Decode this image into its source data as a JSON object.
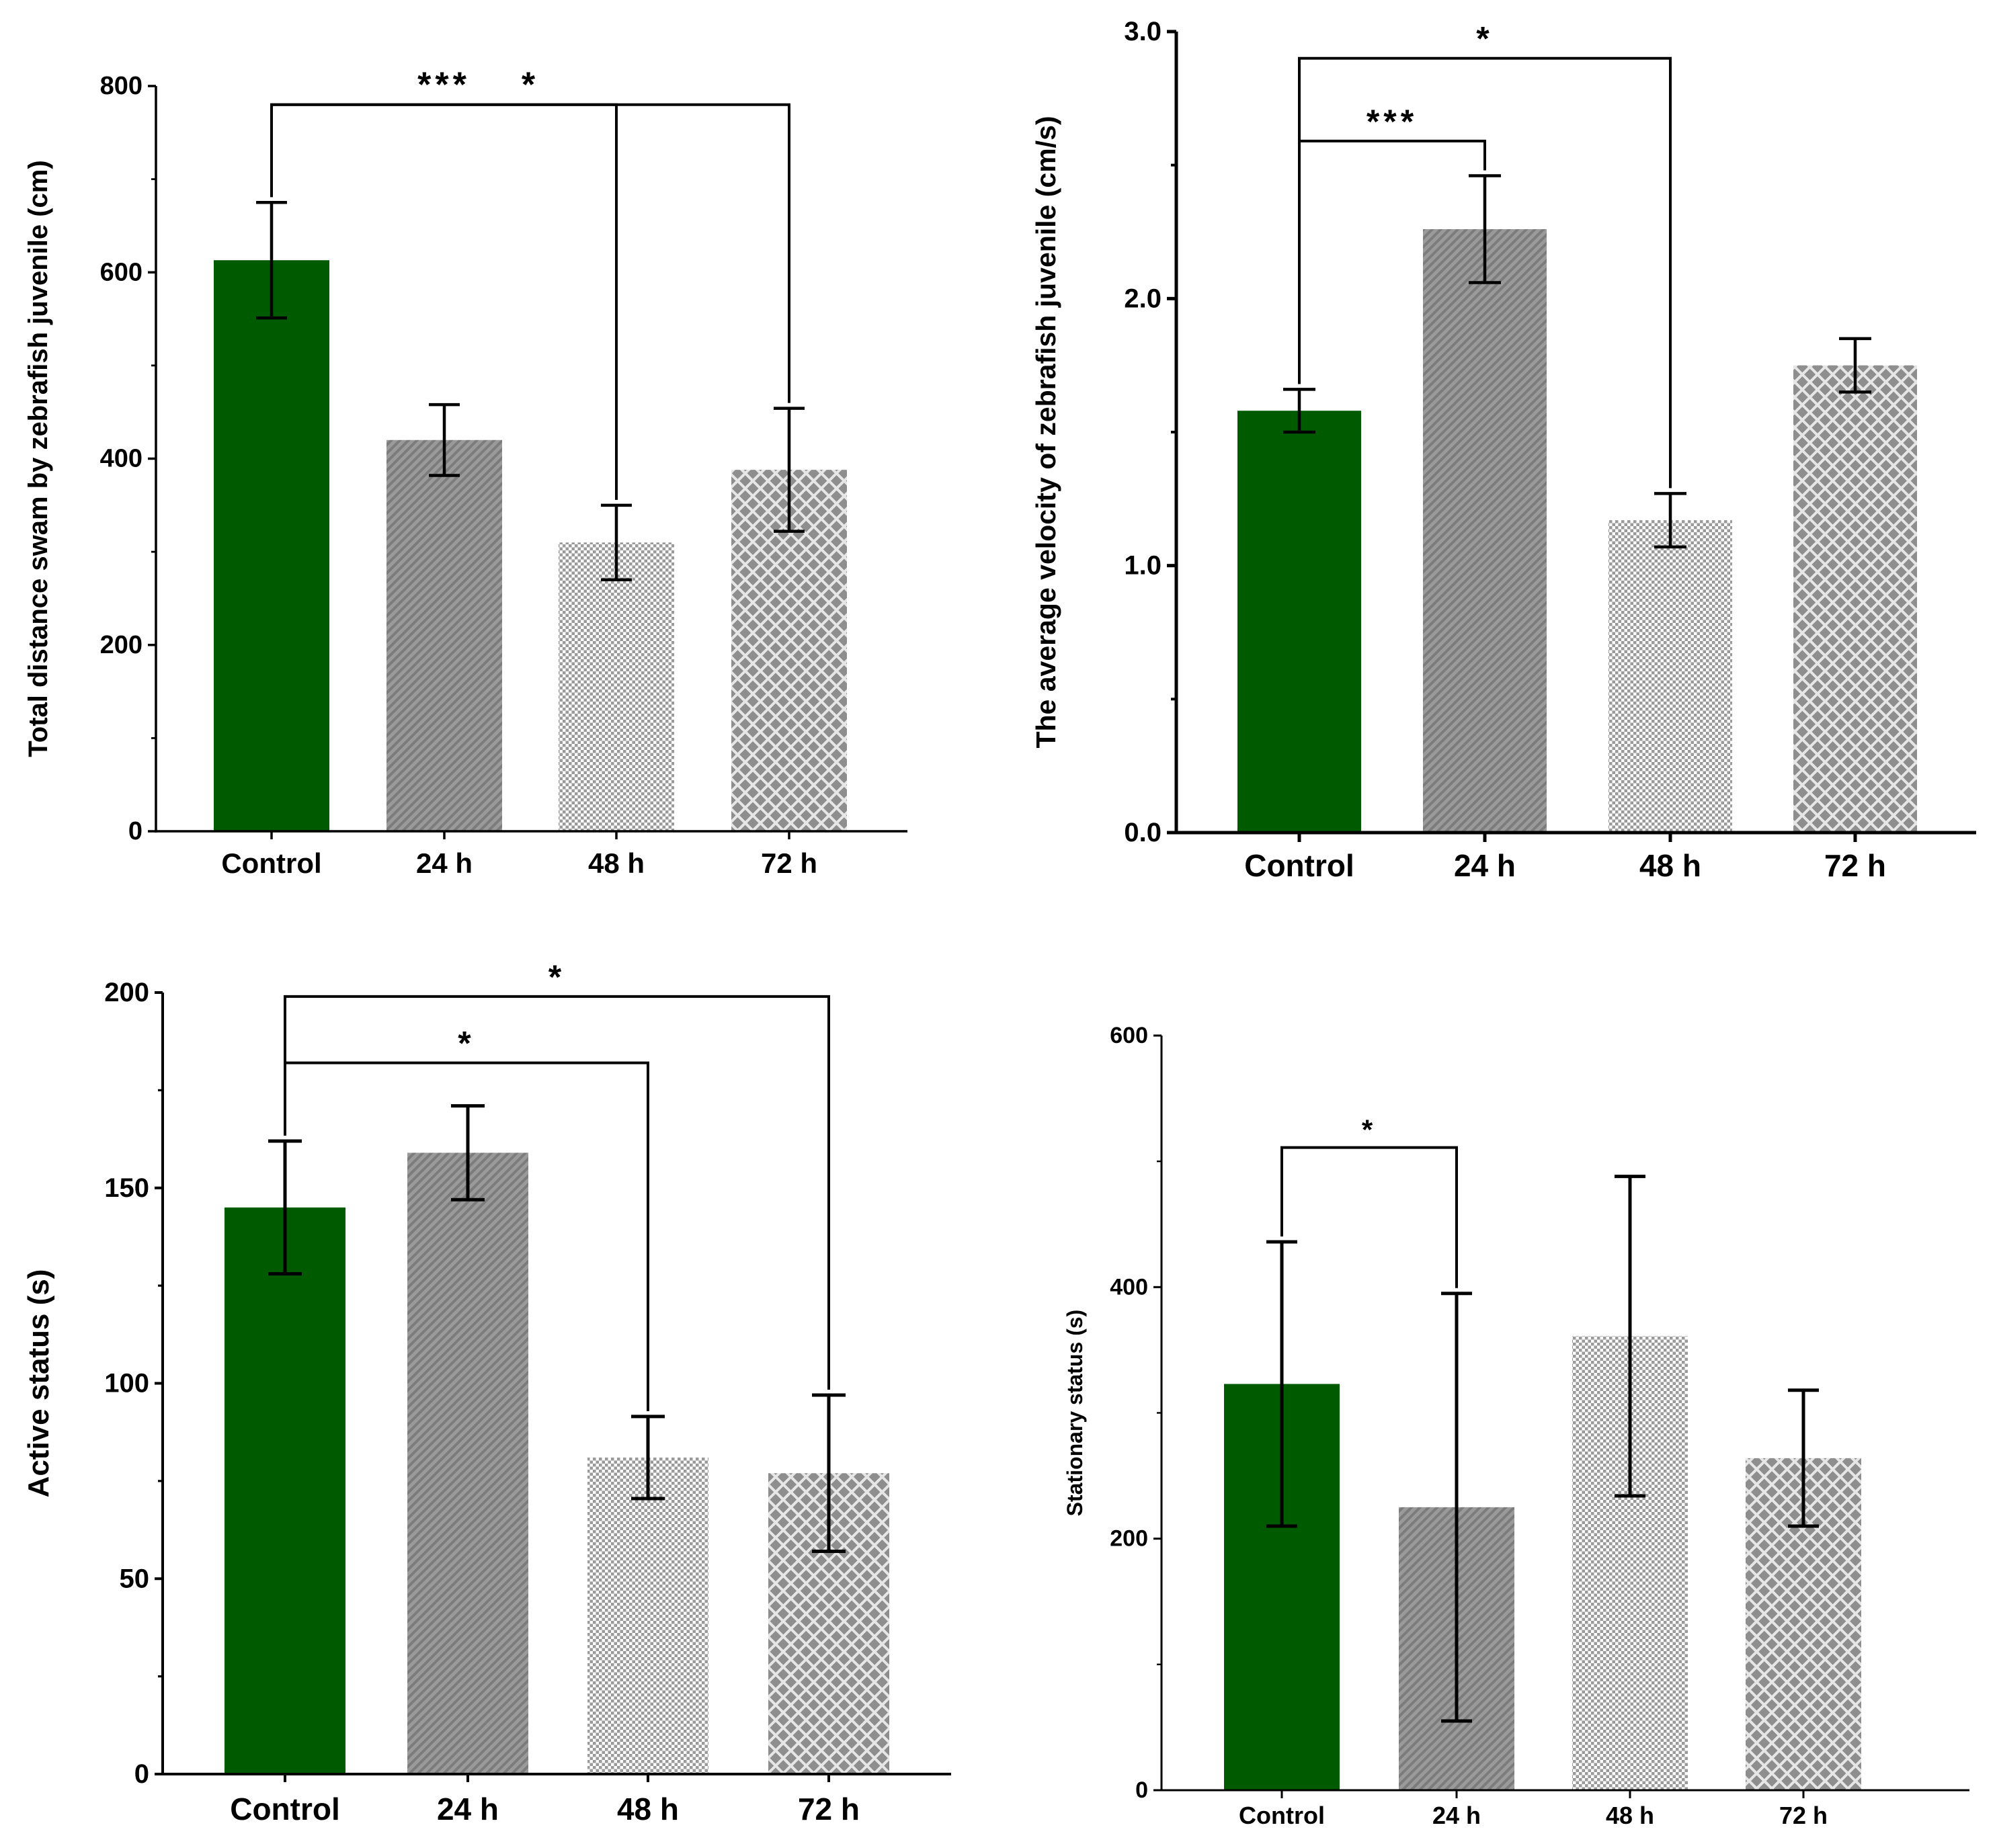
{
  "chart_data": [
    {
      "type": "bar",
      "categories": [
        "Control",
        "24 h",
        "48 h",
        "72 h"
      ],
      "values": [
        613,
        420,
        310,
        388
      ],
      "errors": [
        62,
        38,
        40,
        66
      ],
      "ylabel": "Total distance swam by zebrafish juvenile (cm)",
      "ylim": [
        0,
        800
      ],
      "yticks": [
        {
          "value": 0,
          "label": "0"
        },
        {
          "value": 200,
          "label": "200"
        },
        {
          "value": 400,
          "label": "400"
        },
        {
          "value": 600,
          "label": "600"
        },
        {
          "value": 800,
          "label": "800"
        }
      ],
      "minor_ticks": [
        100,
        300,
        500,
        700
      ],
      "bar_fills": [
        "solid",
        "diagonal",
        "dots",
        "crosshatch"
      ],
      "significance": [
        {
          "from": 0,
          "to": 2,
          "label": "***",
          "level": 780
        },
        {
          "from": 0,
          "to": 3,
          "label": "*",
          "level": 780
        }
      ]
    },
    {
      "type": "bar",
      "categories": [
        "Control",
        "24 h",
        "48 h",
        "72 h"
      ],
      "values": [
        1.58,
        2.26,
        1.17,
        1.75
      ],
      "errors": [
        0.08,
        0.2,
        0.1,
        0.1
      ],
      "ylabel": "The average velocity of zebrafish juvenile (cm/s)",
      "ylim": [
        0,
        3.0
      ],
      "yticks": [
        {
          "value": 0,
          "label": "0.0"
        },
        {
          "value": 1,
          "label": "1.0"
        },
        {
          "value": 2,
          "label": "2.0"
        },
        {
          "value": 3,
          "label": "3.0"
        }
      ],
      "minor_ticks": [
        0.5,
        1.5,
        2.5
      ],
      "bar_fills": [
        "solid",
        "diagonal",
        "dots",
        "crosshatch"
      ],
      "significance": [
        {
          "from": 0,
          "to": 1,
          "label": "***",
          "level": 2.59
        },
        {
          "from": 0,
          "to": 2,
          "label": "*",
          "level": 2.9
        }
      ]
    },
    {
      "type": "bar",
      "categories": [
        "Control",
        "24 h",
        "48 h",
        "72 h"
      ],
      "values": [
        145,
        159,
        81,
        77
      ],
      "errors": [
        17,
        12,
        10.5,
        20
      ],
      "ylabel": "Active status (s)",
      "ylim": [
        0,
        200
      ],
      "yticks": [
        {
          "value": 0,
          "label": "0"
        },
        {
          "value": 50,
          "label": "50"
        },
        {
          "value": 100,
          "label": "100"
        },
        {
          "value": 150,
          "label": "150"
        },
        {
          "value": 200,
          "label": "200"
        }
      ],
      "minor_ticks": [
        25,
        75,
        125,
        175
      ],
      "bar_fills": [
        "solid",
        "diagonal",
        "dots",
        "crosshatch"
      ],
      "significance": [
        {
          "from": 0,
          "to": 2,
          "label": "*",
          "level": 182
        },
        {
          "from": 0,
          "to": 3,
          "label": "*",
          "level": 199
        }
      ]
    },
    {
      "type": "bar",
      "categories": [
        "Control",
        "24 h",
        "48 h",
        "72 h"
      ],
      "values": [
        323,
        225,
        361,
        264
      ],
      "errors": [
        113,
        170,
        127,
        54
      ],
      "ylabel": "Stationary status (s)",
      "ylim": [
        0,
        600
      ],
      "yticks": [
        {
          "value": 0,
          "label": "0"
        },
        {
          "value": 200,
          "label": "200"
        },
        {
          "value": 400,
          "label": "400"
        },
        {
          "value": 600,
          "label": "600"
        }
      ],
      "minor_ticks": [
        100,
        300,
        500
      ],
      "bar_fills": [
        "solid",
        "diagonal",
        "dots",
        "crosshatch"
      ],
      "significance": [
        {
          "from": 0,
          "to": 1,
          "label": "*",
          "level": 511
        }
      ]
    }
  ],
  "colors": {
    "control": "#005a00",
    "pattern_dark": "#8e8e8e",
    "pattern_light": "#ffffff",
    "axis": "#000000"
  }
}
